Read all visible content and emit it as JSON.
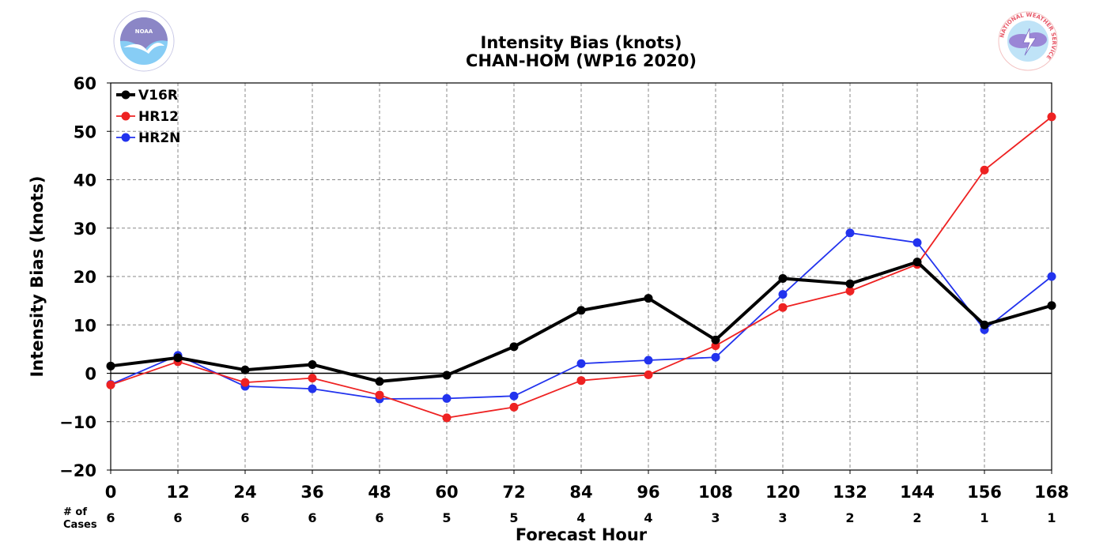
{
  "chart_data": {
    "type": "line",
    "title": "Intensity Bias (knots)",
    "subtitle": "CHAN-HOM (WP16 2020)",
    "xlabel": "Forecast Hour",
    "ylabel": "Intensity Bias (knots)",
    "x": [
      0,
      12,
      24,
      36,
      48,
      60,
      72,
      84,
      96,
      108,
      120,
      132,
      144,
      156,
      168
    ],
    "xlim": [
      0,
      168
    ],
    "ylim": [
      -20,
      60
    ],
    "y_ticks": [
      "−20",
      "−10",
      "0",
      "10",
      "20",
      "30",
      "40",
      "50",
      "60"
    ],
    "grid": true,
    "legend_position": "top-left",
    "cases_label_line1": "# of",
    "cases_label_line2": "Cases",
    "cases": [
      6,
      6,
      6,
      6,
      6,
      5,
      5,
      4,
      4,
      3,
      3,
      2,
      2,
      1,
      1
    ],
    "series": [
      {
        "name": "V16R",
        "color": "#000000",
        "values": [
          1.5,
          3.2,
          0.7,
          1.8,
          -1.7,
          -0.4,
          5.5,
          13.0,
          15.5,
          6.9,
          19.6,
          18.5,
          23.0,
          10.0,
          14.0
        ]
      },
      {
        "name": "HR12",
        "color": "#ee2222",
        "values": [
          -2.4,
          2.4,
          -1.9,
          -1.0,
          -4.5,
          -9.2,
          -7.0,
          -1.5,
          -0.3,
          5.7,
          13.6,
          17.0,
          22.5,
          42.0,
          53.0
        ]
      },
      {
        "name": "HR2N",
        "color": "#2233ee",
        "values": [
          -2.3,
          3.7,
          -2.7,
          -3.2,
          -5.3,
          -5.2,
          -4.7,
          2.0,
          2.7,
          3.3,
          16.3,
          29.0,
          27.0,
          9.0,
          20.0
        ]
      }
    ]
  },
  "logos": {
    "noaa_text": "NOAA",
    "nws_text": "NATIONAL WEATHER SERVICE"
  }
}
